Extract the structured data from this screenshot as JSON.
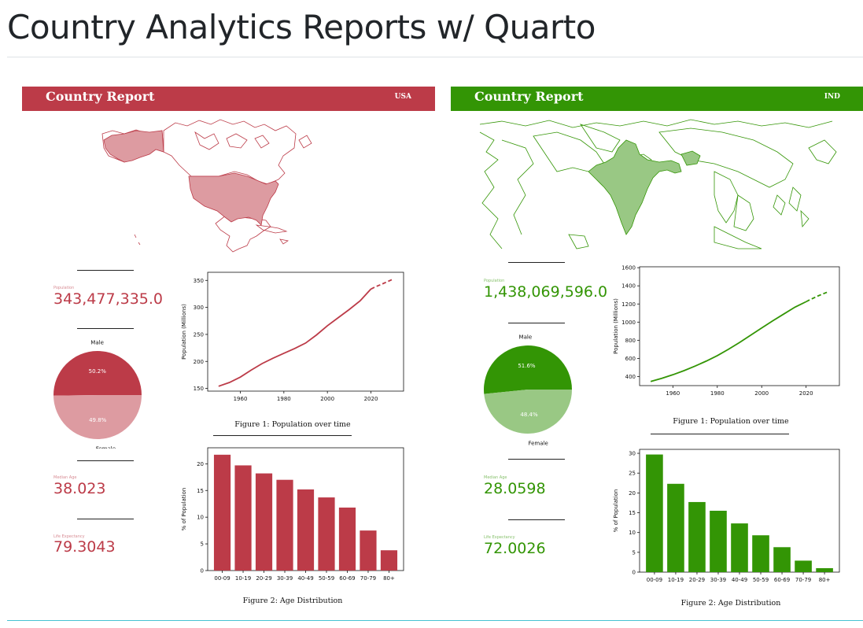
{
  "page": {
    "title": "Country Analytics Reports w/ Quarto"
  },
  "reports": [
    {
      "banner_title": "Country Report",
      "country_code": "USA",
      "color": "#bc3b48",
      "light_color": "#dd9ba1",
      "stats": [
        {
          "label": "Population",
          "value": "343,477,335.0"
        },
        {
          "label": "Median Age",
          "value": "38.023"
        },
        {
          "label": "Life Expectancy",
          "value": "79.3043"
        }
      ],
      "pie": {
        "male_label": "Male",
        "female_label": "Female",
        "male_pct": "50.2%",
        "female_pct": "49.8%",
        "male": 50.2,
        "female": 49.8
      },
      "figure1_caption": "Figure 1:  Population over time",
      "figure2_caption": "Figure 2:  Age Distribution"
    },
    {
      "banner_title": "Country Report",
      "country_code": "IND",
      "color": "#339505",
      "light_color": "#99c884",
      "stats": [
        {
          "label": "Population",
          "value": "1,438,069,596.0"
        },
        {
          "label": "Median Age",
          "value": "28.0598"
        },
        {
          "label": "Life Expectancy",
          "value": "72.0026"
        }
      ],
      "pie": {
        "male_label": "Male",
        "female_label": "Female",
        "male_pct": "51.6%",
        "female_pct": "48.4%",
        "male": 51.6,
        "female": 48.4
      },
      "figure1_caption": "Figure 1:  Population over time",
      "figure2_caption": "Figure 2:  Age Distribution"
    }
  ],
  "chart_data": [
    {
      "type": "line",
      "country": "USA",
      "ylabel": "Population (Millions)",
      "xlim": [
        1945,
        2035
      ],
      "ylim": [
        145,
        365
      ],
      "xticks": [
        1960,
        1980,
        2000,
        2020
      ],
      "yticks": [
        150,
        200,
        250,
        300,
        350
      ],
      "series": [
        {
          "style": "solid",
          "x": [
            1950,
            1955,
            1960,
            1965,
            1970,
            1975,
            1980,
            1985,
            1990,
            1995,
            2000,
            2005,
            2010,
            2015,
            2020
          ],
          "y": [
            154,
            161,
            171,
            184,
            196,
            206,
            215,
            224,
            234,
            249,
            266,
            281,
            296,
            312,
            334
          ]
        },
        {
          "style": "dashed",
          "x": [
            2020,
            2022,
            2025,
            2030
          ],
          "y": [
            334,
            338,
            343,
            352
          ]
        }
      ]
    },
    {
      "type": "bar",
      "country": "USA",
      "ylabel": "% of Population",
      "categories": [
        "00-09",
        "10-19",
        "20-29",
        "30-39",
        "40-49",
        "50-59",
        "60-69",
        "70-79",
        "80+"
      ],
      "values": [
        21.7,
        19.7,
        18.2,
        17.0,
        15.2,
        13.7,
        11.8,
        7.5,
        3.8
      ],
      "ylim": [
        0,
        23
      ],
      "yticks": [
        0,
        5,
        10,
        15,
        20
      ]
    },
    {
      "type": "line",
      "country": "IND",
      "ylabel": "Population (Millions)",
      "xlim": [
        1945,
        2035
      ],
      "ylim": [
        300,
        1610
      ],
      "xticks": [
        1960,
        1980,
        2000,
        2020
      ],
      "yticks": [
        400,
        600,
        800,
        1000,
        1200,
        1400,
        1600
      ],
      "series": [
        {
          "style": "solid",
          "x": [
            1950,
            1955,
            1960,
            1965,
            1970,
            1975,
            1980,
            1985,
            1990,
            1995,
            2000,
            2005,
            2010,
            2015,
            2020
          ],
          "y": [
            346,
            380,
            420,
            465,
            515,
            570,
            630,
            700,
            775,
            855,
            935,
            1015,
            1090,
            1165,
            1225
          ]
        },
        {
          "style": "dashed",
          "x": [
            2020,
            2022,
            2025,
            2030
          ],
          "y": [
            1225,
            1250,
            1285,
            1335
          ]
        }
      ]
    },
    {
      "type": "bar",
      "country": "IND",
      "ylabel": "% of Population",
      "categories": [
        "00-09",
        "10-19",
        "20-29",
        "30-39",
        "40-49",
        "50-59",
        "60-69",
        "70-79",
        "80+"
      ],
      "values": [
        29.7,
        22.3,
        17.7,
        15.5,
        12.3,
        9.3,
        6.3,
        2.9,
        1.0
      ],
      "ylim": [
        0,
        31
      ],
      "yticks": [
        0,
        5,
        10,
        15,
        20,
        25,
        30
      ]
    }
  ]
}
